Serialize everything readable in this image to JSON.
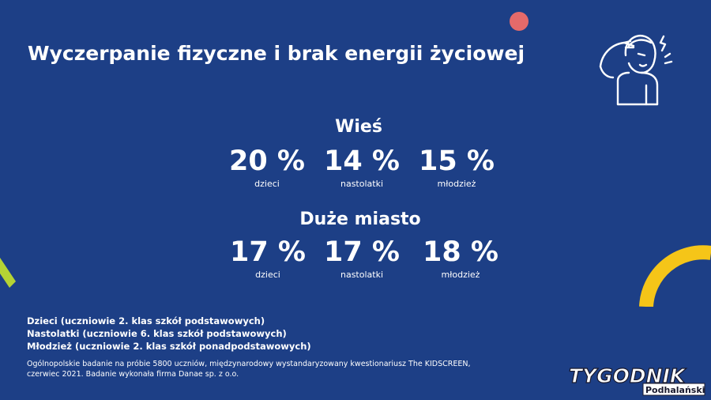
{
  "title": "Wyczerpanie fizyczne i brak energii życiowej",
  "sections": [
    {
      "title": "Wieś",
      "stats": [
        {
          "value": "20 %",
          "label": "dzieci"
        },
        {
          "value": "14 %",
          "label": "nastolatki"
        },
        {
          "value": "15 %",
          "label": "młodzież"
        }
      ]
    },
    {
      "title": "Duże miasto",
      "stats": [
        {
          "value": "17 %",
          "label": "dzieci"
        },
        {
          "value": "17 %",
          "label": "nastolatki"
        },
        {
          "value": "18 %",
          "label": "młodzież"
        }
      ]
    }
  ],
  "legend": [
    "Dzieci (uczniowie 2. klas szkół podstawowych)",
    "Nastolatki (uczniowie 6. klas szkół podstawowych)",
    "Młodzież (uczniowie 2. klas szkół ponadpodstawowych)"
  ],
  "footnote": "Ogólnopolskie badanie na próbie 5800 uczniów, międzynarodowy wystandaryzowany kwestionariusz The KIDSCREEN, czerwiec 2021. Badanie wykonała firma Danae sp. z o.o.",
  "logo": {
    "main": "TYGODNIK",
    "sub": "Podhalański"
  },
  "colors": {
    "background": "#1d3f86",
    "accent_red": "#e56a6a",
    "accent_yellow": "#f5c518",
    "accent_green": "#b5d334"
  },
  "icons": [
    "headache-person-icon"
  ]
}
